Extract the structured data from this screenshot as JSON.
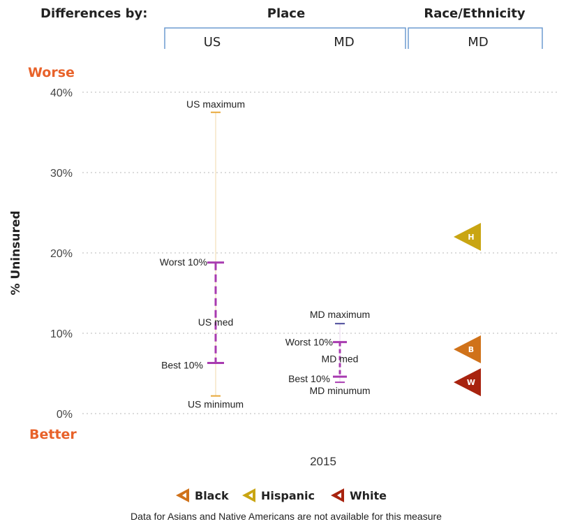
{
  "header": {
    "lead": "Differences by:",
    "groups": [
      {
        "label": "Place",
        "columns": [
          "US",
          "MD"
        ]
      },
      {
        "label": "Race/Ethnicity",
        "columns": [
          "MD"
        ]
      }
    ]
  },
  "chart_data": {
    "type": "scatter",
    "ylabel": "% Uninsured",
    "xlabel": "2015",
    "ylim": [
      0,
      40
    ],
    "yticks": [
      {
        "value": 0,
        "label": "0%"
      },
      {
        "value": 10,
        "label": "10%"
      },
      {
        "value": 20,
        "label": "20%"
      },
      {
        "value": 30,
        "label": "30%"
      },
      {
        "value": 40,
        "label": "40%"
      }
    ],
    "grid": true,
    "top_label": "Worse",
    "bottom_label": "Better",
    "place": [
      {
        "column": "US",
        "maximum": {
          "value": 37.5,
          "label": "US maximum"
        },
        "worst10": {
          "value": 18.8,
          "label": "Worst 10%"
        },
        "median": {
          "value": 11.3,
          "label": "US med"
        },
        "best10": {
          "value": 6.3,
          "label": "Best 10%"
        },
        "minimum": {
          "value": 2.2,
          "label": "US minimum"
        }
      },
      {
        "column": "MD",
        "maximum": {
          "value": 11.2,
          "label": "MD maximum"
        },
        "worst10": {
          "value": 8.9,
          "label": "Worst 10%"
        },
        "median": {
          "value": 7.0,
          "label": "MD med"
        },
        "best10": {
          "value": 4.6,
          "label": "Best 10%"
        },
        "minimum": {
          "value": 3.9,
          "label": "MD minumum"
        }
      }
    ],
    "race": [
      {
        "name": "Hispanic",
        "marker": "H",
        "value": 22.0,
        "color": "#c9a512"
      },
      {
        "name": "Black",
        "marker": "B",
        "value": 8.0,
        "color": "#d0721a"
      },
      {
        "name": "White",
        "marker": "W",
        "value": 3.9,
        "color": "#a8230f"
      }
    ],
    "legend": {
      "placement": "bottom",
      "entries": [
        {
          "name": "Black",
          "color": "#d0721a"
        },
        {
          "name": "Hispanic",
          "color": "#c9a512"
        },
        {
          "name": "White",
          "color": "#a8230f"
        }
      ]
    },
    "note": "Data for Asians and Native Americans are not available for this measure",
    "colors": {
      "range": "#a83bb0",
      "minmax": "#e8a83a",
      "md_max": "#4a4a9a",
      "accent": "#e8622a",
      "bracket": "#6d9bd0"
    }
  }
}
